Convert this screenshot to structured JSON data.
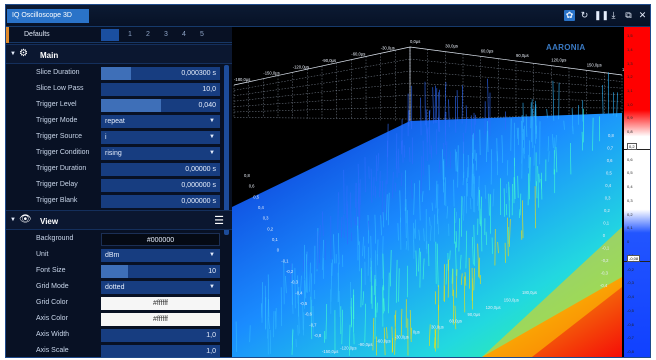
{
  "window": {
    "title": "IQ Oscilloscope 3D",
    "icons": [
      "settings-icon",
      "refresh-icon",
      "pause-icon",
      "download-icon",
      "window-icon",
      "close-icon"
    ]
  },
  "panel": {
    "defaults_label": "Defaults",
    "tabs": [
      "1",
      "2",
      "3",
      "4",
      "5"
    ],
    "active_tab": "1"
  },
  "main": {
    "title": "Main",
    "rows": [
      {
        "label": "Slice Duration",
        "value": "0,000300 s",
        "fill": 0.25
      },
      {
        "label": "Slice Low Pass",
        "value": "10,0"
      },
      {
        "label": "Trigger Level",
        "value": "0,040",
        "fill": 0.5
      },
      {
        "label": "Trigger Mode",
        "value": "repeat"
      },
      {
        "label": "Trigger Source",
        "value": "i"
      },
      {
        "label": "Trigger Condition",
        "value": "rising"
      },
      {
        "label": "Trigger Duration",
        "value": "0,00000 s"
      },
      {
        "label": "Trigger Delay",
        "value": "0,000000 s"
      },
      {
        "label": "Trigger Blank",
        "value": "0,000000 s"
      }
    ]
  },
  "view": {
    "title": "View",
    "rows": [
      {
        "label": "Background",
        "value": "#000000"
      },
      {
        "label": "Unit",
        "value": "dBm"
      },
      {
        "label": "Font Size",
        "value": "10",
        "fill": 0.23
      },
      {
        "label": "Grid Mode",
        "value": "dotted"
      },
      {
        "label": "Grid Color",
        "value": "#ffffff"
      },
      {
        "label": "Axis Color",
        "value": "#ffffff"
      },
      {
        "label": "Axis Width",
        "value": "1,0"
      },
      {
        "label": "Axis Scale",
        "value": "1,0"
      }
    ]
  },
  "plot": {
    "logo": "AARONIA",
    "left_axis": [
      "0,8",
      "0,6",
      "0,5",
      "0,4",
      "0,3",
      "0,2",
      "0,1",
      "0",
      "-0,1",
      "-0,2",
      "-0,3",
      "-0,4",
      "-0,5",
      "-0,6",
      "-0,7",
      "-0,8"
    ],
    "top_axis": [
      "-180,0µs",
      "-150,0µs",
      "-120,0µs",
      "-90,0µs",
      "-60,0µs",
      "-30,0µs",
      "0,0µs",
      "30,0µs",
      "60,0µs",
      "90,0µs",
      "120,0µs",
      "150,0µs",
      "180,0µs"
    ],
    "bottom_axis": [
      "-150,0µs",
      "-120,0µs",
      "-90,0µs",
      "-60,0µs",
      "-30,0µs",
      "0µs",
      "30,0µs",
      "60,0µs",
      "90,0µs",
      "120,0µs",
      "150,0µs",
      "180,0µs"
    ],
    "right_axis": [
      "0,8",
      "0,7",
      "0,6",
      "0,5",
      "0,4",
      "0,3",
      "0,2",
      "0,1",
      "0",
      "-0,1",
      "-0,2",
      "-0,3",
      "-0,4"
    ]
  },
  "colorbar": {
    "ticks": [
      "1,5",
      "1,4",
      "1,3",
      "1,2",
      "1,1",
      "1,0",
      "0,9",
      "0,8",
      "0,7",
      "0,6",
      "0,5",
      "0,4",
      "0,3",
      "0,2",
      "0,1",
      "0",
      "-0,1",
      "-0,2",
      "-0,3",
      "-0,4",
      "-0,5",
      "-0,6",
      "-0,7",
      "-0,8"
    ],
    "marker_top": "0,2",
    "marker_bottom": "-0,08"
  },
  "colors": {
    "accent": "#2a73c8",
    "control_bg": "#173d80",
    "panel_bg": "#081124",
    "heat_low": "#1a4cff",
    "heat_mid": "#22e0c8",
    "heat_high": "#ff1a00"
  }
}
